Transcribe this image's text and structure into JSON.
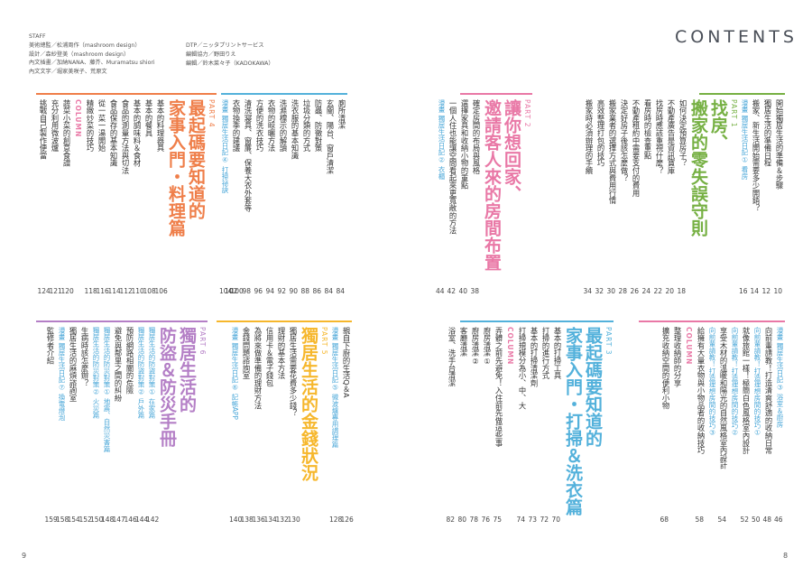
{
  "header": {
    "contents_title": "CONTENTS",
    "credits_left": [
      "STAFF",
      "美術總監／松浦周作（mashroom design）",
      "設計／森紗登美（mashroom design）",
      "內文插畫／加納NANA、藤芥、Muramatsu shiori",
      "內文文字／堀家美咲子、荒原文"
    ],
    "credits_right": [
      "DTP／ニッタプリントサービス",
      "編輯協力／野田りえ",
      "編輯／鈴木菜々子（KADOKAWA）"
    ]
  },
  "folios": {
    "left": "9",
    "right": "8"
  },
  "colors": {
    "part1": "#76b043",
    "part2": "#e978a6",
    "part3": "#53b1db",
    "part4": "#ef7e49",
    "part5": "#f6b72c",
    "part6": "#b47fc6",
    "manga_label": "#4aa7d8",
    "column_label": "#e978a6",
    "text": "#333333"
  },
  "sections": [
    {
      "id": "part1",
      "items": [
        {
          "text": "開始獨居生活的準備＆步驟",
          "page": "10"
        },
        {
          "text": "獨居生活的準備日程",
          "page": "12"
        },
        {
          "text": "搬家、新生活開始需要多少開銷？",
          "page": "14"
        },
        {
          "text": "漫畫 獨居生活日記① 看房",
          "page": "16",
          "type": "manga"
        },
        {
          "text": "PART 1",
          "type": "part"
        },
        {
          "text": "找房、",
          "type": "title"
        },
        {
          "text": "搬家的零失誤守則",
          "type": "title"
        },
        {
          "text": "如何決定預算房子？",
          "page": "18"
        },
        {
          "text": "不動產廣告是資訊寶庫",
          "page": "20"
        },
        {
          "text": "找房時應該重視什麼？",
          "page": "22"
        },
        {
          "text": "看房時的檢查重點",
          "page": "24"
        },
        {
          "text": "不動產租約中需要支付的費用",
          "page": "26"
        },
        {
          "text": "決定好房子後該怎麼做？",
          "page": "28"
        },
        {
          "text": "搬家業者的選擇方式與費用行情",
          "page": "30"
        },
        {
          "text": "高效整理打包的技巧",
          "page": "32"
        },
        {
          "text": "搬家時必須辦理的手續",
          "page": "34"
        }
      ]
    },
    {
      "id": "part2",
      "items": [
        {
          "text": "PART 2",
          "type": "part"
        },
        {
          "text": "讓你想回家、",
          "type": "title"
        },
        {
          "text": "邀請客人來的房間布置",
          "type": "title"
        },
        {
          "text": "確定房間的布局與風格",
          "page": "38"
        },
        {
          "text": "選擇家具和收納小物的重點",
          "page": "40"
        },
        {
          "text": "一個人住也能讓空間看起來更寬敞的方法",
          "page": "42"
        },
        {
          "text": "漫畫 獨居生活日記② 衣櫃",
          "page": "44",
          "type": "manga"
        }
      ]
    },
    {
      "id": "part2b",
      "items": [
        {
          "text": "漫畫 獨居生活日記③ 浴室＆廚房",
          "page": "46",
          "type": "manga"
        },
        {
          "text": "向前輩請教！打造清爽舒適的收納日常",
          "page": "48"
        },
        {
          "text": "向前輩請教！打造理想房間的技巧①",
          "page": "50",
          "type": "manga"
        },
        {
          "text": "就像旅館一樣！極簡白色風格室內設計",
          "page": "52"
        },
        {
          "text": "向前輩請教！打造理想房間的技巧②",
          "page": "",
          "type": "manga"
        },
        {
          "text": "享受木材的溫暖和陽光的自然風格室內設計",
          "page": "54"
        },
        {
          "text": "向前輩請教！打造理想房間的技巧③",
          "page": "",
          "type": "manga"
        },
        {
          "text": "給擁有大量衣物與小物品者的收納技巧",
          "page": "58"
        },
        {
          "text": "COLUMN",
          "type": "column"
        },
        {
          "text": "整理收納師的分享",
          "page": ""
        },
        {
          "text": "擴充收納空間的便利小物",
          "page": "68"
        }
      ]
    },
    {
      "id": "part3",
      "items": [
        {
          "text": "PART 3",
          "type": "part"
        },
        {
          "text": "最起碼要知道的",
          "type": "title"
        },
        {
          "text": "家事入門・打掃＆洗衣篇",
          "type": "title"
        },
        {
          "text": "基本的打掃工具",
          "page": "70"
        },
        {
          "text": "打掃的進行方式",
          "page": "72"
        },
        {
          "text": "基本的打掃清潔劑",
          "page": "73"
        },
        {
          "text": "打掃規模分為小、中、大",
          "page": "74"
        },
        {
          "text": "COLUMN",
          "type": "column"
        },
        {
          "text": "弄髒之前先避免！入住前先做這些事",
          "page": "75"
        },
        {
          "text": "廚房清潔①",
          "page": "76"
        },
        {
          "text": "廚房清潔②",
          "page": "78"
        },
        {
          "text": "客廳清潔",
          "page": "80"
        },
        {
          "text": "浴室、洗手台清潔",
          "page": "82"
        }
      ]
    },
    {
      "id": "part3b",
      "items": [
        {
          "text": "廁所清潔",
          "page": "84"
        },
        {
          "text": "玄關、陽台、窗戶清潔",
          "page": "84"
        },
        {
          "text": "防蟲、防黴對策",
          "page": "86"
        },
        {
          "text": "垃圾分類的方式",
          "page": "88"
        },
        {
          "text": "洗衣服的基本知識",
          "page": "90"
        },
        {
          "text": "洗滌標示的解讀",
          "page": "92"
        },
        {
          "text": "衣物的晾曬方法",
          "page": "94"
        },
        {
          "text": "方便的洗衣技巧",
          "page": "96"
        },
        {
          "text": "清洗寢具、窗簾、保養大衣外套等",
          "page": "98"
        },
        {
          "text": "衣物換季的建議",
          "page": "100"
        },
        {
          "text": "",
          "page": "102"
        },
        {
          "text": "漫畫 獨居生活日記④ 打掃祕訣",
          "page": "104",
          "type": "manga"
        }
      ]
    },
    {
      "id": "part4",
      "items": [
        {
          "text": "PART 4",
          "type": "part"
        },
        {
          "text": "最起碼要知道的",
          "type": "title"
        },
        {
          "text": "家事入門・料理篇",
          "type": "title"
        },
        {
          "text": "基本的料理器具",
          "page": "106"
        },
        {
          "text": "基本的餐具",
          "page": "108"
        },
        {
          "text": "基本的調味料＆食材",
          "page": "110"
        },
        {
          "text": "食品的測量方法與切法",
          "page": "112"
        },
        {
          "text": "食品保存的基本知識",
          "page": "114"
        },
        {
          "text": "從一菜一湯開始",
          "page": "116"
        },
        {
          "text": "精緻炒菜的技巧",
          "page": "118"
        },
        {
          "text": "COLUMN",
          "type": "column"
        },
        {
          "text": "蔬菜小菜的創意食譜",
          "page": "120"
        },
        {
          "text": "充分利用微波爐",
          "page": "121"
        },
        {
          "text": "挑戰自己製作便當",
          "page": "124"
        }
      ]
    },
    {
      "id": "part5",
      "items": [
        {
          "text": "親自下廚的生活Q＆A",
          "page": "126"
        },
        {
          "text": "漫畫 獨居生活日記⑤ 微波爐專用調理篇",
          "page": "128",
          "type": "manga"
        },
        {
          "text": "PART 5",
          "type": "part"
        },
        {
          "text": "獨居生活的金錢狀況",
          "type": "title"
        },
        {
          "text": "獨居生活需要花費多少錢？",
          "page": "130"
        },
        {
          "text": "理財的基本方法",
          "page": "132"
        },
        {
          "text": "信用卡＆電子錢包",
          "page": "134"
        },
        {
          "text": "為將來做準備的理財方法",
          "page": "136"
        },
        {
          "text": "金錢問題諮詢室",
          "page": "138"
        },
        {
          "text": "漫畫 獨居生活日記⑥ 記帳APP",
          "page": "140",
          "type": "manga"
        }
      ]
    },
    {
      "id": "part6",
      "items": [
        {
          "text": "PART 6",
          "type": "part"
        },
        {
          "text": "獨居生活的",
          "type": "title"
        },
        {
          "text": "防盜＆防災手冊",
          "type": "title"
        },
        {
          "text": "獨居生活的防盜對策① 在家篇",
          "page": "142",
          "type": "manga"
        },
        {
          "text": "獨居生活的防盜對策② 戶外篇",
          "page": "144",
          "type": "manga"
        },
        {
          "text": "預防網路相關的危險",
          "page": "146"
        },
        {
          "text": "避免與鄰里之間的糾紛",
          "page": "147"
        },
        {
          "text": "獨居生活的防災對策① 地震、自然災害篇",
          "page": "148",
          "type": "manga"
        },
        {
          "text": "獨居生活的防災對策② 火災篇",
          "page": "150",
          "type": "manga"
        },
        {
          "text": "生病時該怎麼辦？",
          "page": "152"
        },
        {
          "text": "獨居生活的麻煩諮詢室",
          "page": "154"
        },
        {
          "text": "漫畫 獨居生活日記⑦ 換電燈泡",
          "page": "158",
          "type": "manga"
        },
        {
          "text": "監修者介紹",
          "page": "159"
        }
      ]
    }
  ]
}
